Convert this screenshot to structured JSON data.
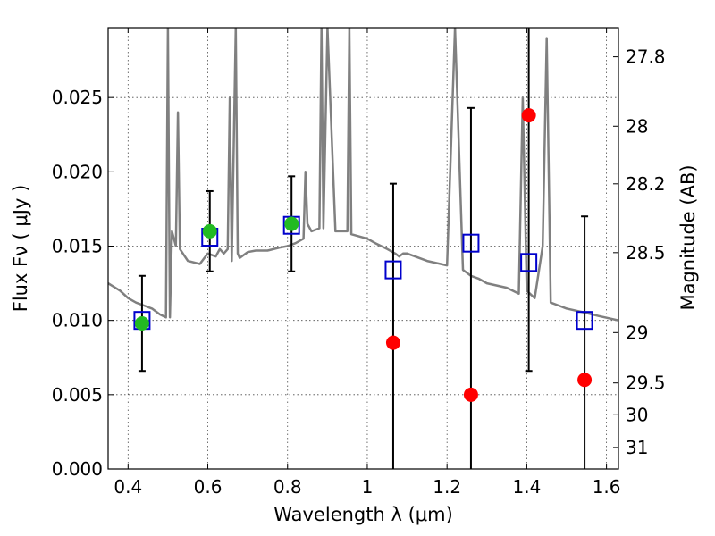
{
  "chart_data": {
    "type": "scatter",
    "xlabel": "Wavelength  λ (μm)",
    "ylabel": "Flux  Fν  ( μJy )",
    "ylabel_right": "Magnitude (AB)",
    "xlim": [
      0.35,
      1.63
    ],
    "ylim": [
      0,
      0.0297
    ],
    "x_ticks": [
      0.4,
      0.6,
      0.8,
      1.0,
      1.2,
      1.4,
      1.6
    ],
    "x_tick_labels": [
      "0.4",
      "0.6",
      "0.8",
      "1",
      "1.2",
      "1.4",
      "1.6"
    ],
    "y_ticks": [
      0,
      0.005,
      0.01,
      0.015,
      0.02,
      0.025
    ],
    "y_tick_labels": [
      "0.000",
      "0.005",
      "0.010",
      "0.015",
      "0.020",
      "0.025"
    ],
    "right_ticks": [
      {
        "label": "27.8",
        "flux": 0.02774
      },
      {
        "label": "28",
        "flux": 0.02307
      },
      {
        "label": "28.2",
        "flux": 0.01919
      },
      {
        "label": "28.5",
        "flux": 0.01456
      },
      {
        "label": "29",
        "flux": 0.00918
      },
      {
        "label": "29.5",
        "flux": 0.00579
      },
      {
        "label": "30",
        "flux": 0.00365
      },
      {
        "label": "31",
        "flux": 0.00145
      }
    ],
    "grid": true,
    "colors": {
      "spectrum": "#808080",
      "model_box": "#0000cc",
      "detection": "#22bb22",
      "upper_point": "#ff0000",
      "errorbar": "#000000"
    },
    "series": [
      {
        "type": "line",
        "x": [
          0.35,
          0.38,
          0.4,
          0.42,
          0.44,
          0.46,
          0.48,
          0.495,
          0.5,
          0.505,
          0.51,
          0.52,
          0.525,
          0.53,
          0.55,
          0.58,
          0.6,
          0.62,
          0.63,
          0.64,
          0.65,
          0.655,
          0.66,
          0.67,
          0.675,
          0.68,
          0.7,
          0.72,
          0.75,
          0.78,
          0.8,
          0.82,
          0.84,
          0.845,
          0.85,
          0.86,
          0.88,
          0.885,
          0.89,
          0.9,
          0.92,
          0.95,
          0.955,
          0.96,
          1.0,
          1.02,
          1.05,
          1.07,
          1.08,
          1.09,
          1.1,
          1.15,
          1.2,
          1.22,
          1.24,
          1.26,
          1.28,
          1.3,
          1.35,
          1.38,
          1.39,
          1.4,
          1.42,
          1.44,
          1.45,
          1.46,
          1.48,
          1.5,
          1.55,
          1.58,
          1.63
        ],
        "y": [
          0.0125,
          0.012,
          0.0115,
          0.0112,
          0.011,
          0.0108,
          0.0104,
          0.0102,
          0.0297,
          0.0102,
          0.016,
          0.015,
          0.024,
          0.0148,
          0.014,
          0.0138,
          0.0145,
          0.0143,
          0.0148,
          0.0145,
          0.0148,
          0.025,
          0.014,
          0.0297,
          0.0145,
          0.0142,
          0.0146,
          0.0147,
          0.0147,
          0.0149,
          0.015,
          0.0152,
          0.0155,
          0.02,
          0.0165,
          0.016,
          0.0162,
          0.0297,
          0.0162,
          0.0297,
          0.016,
          0.016,
          0.0297,
          0.0158,
          0.0155,
          0.0152,
          0.0148,
          0.0145,
          0.0143,
          0.0145,
          0.0145,
          0.014,
          0.0137,
          0.0297,
          0.0134,
          0.013,
          0.0128,
          0.0125,
          0.0122,
          0.0118,
          0.025,
          0.012,
          0.0115,
          0.015,
          0.029,
          0.0112,
          0.011,
          0.0108,
          0.0105,
          0.0103,
          0.01
        ]
      },
      {
        "type": "model_boxes",
        "x": [
          0.435,
          0.605,
          0.81,
          1.065,
          1.26,
          1.405,
          1.545
        ],
        "y": [
          0.01,
          0.0156,
          0.0164,
          0.0134,
          0.0152,
          0.0139,
          0.01
        ]
      },
      {
        "type": "detections",
        "x": [
          0.435,
          0.605,
          0.81
        ],
        "y": [
          0.0098,
          0.016,
          0.0165
        ],
        "y_low": [
          0.0066,
          0.0133,
          0.0133
        ],
        "y_high": [
          0.013,
          0.0187,
          0.0197
        ]
      },
      {
        "type": "non_detections",
        "x": [
          1.065,
          1.26,
          1.405,
          1.545
        ],
        "y": [
          0.0085,
          0.005,
          0.0238,
          0.006
        ],
        "y_low": [
          0,
          0,
          0.0066,
          0
        ],
        "y_high": [
          0.0192,
          0.0243,
          0.0297,
          0.017
        ]
      }
    ]
  }
}
